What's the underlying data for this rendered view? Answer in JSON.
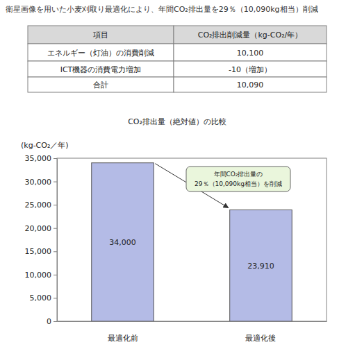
{
  "header": {
    "title": "衛星画像を用いた小麦刈取り最適化により、年間CO₂排出量を29％（10,090kg相当）削減"
  },
  "table": {
    "header": [
      "項目",
      "CO₂排出削減量（kg-CO₂/年）"
    ],
    "rows": [
      [
        "エネルギー（灯油）の消費削減",
        "10,100"
      ],
      [
        "ICT機器の消費電力増加",
        "-10（増加）"
      ],
      [
        "合計",
        "10,090"
      ]
    ]
  },
  "chart_data": {
    "type": "bar",
    "title": "CO₂排出量（絶対値）の比較",
    "y_label": "(kg-CO₂／年)",
    "categories": [
      "最適化前",
      "最適化後"
    ],
    "values": [
      34000,
      23910
    ],
    "value_labels": [
      "34,000",
      "23,910"
    ],
    "data_labels": true,
    "color": "#b4bbe6",
    "ylim": [
      0,
      35000
    ],
    "yticks": [
      0,
      {
        "value": 5000,
        "label": "5,000"
      },
      {
        "value": 10000,
        "label": "10,000"
      },
      {
        "value": 15000,
        "label": "15,000"
      },
      {
        "value": 20000,
        "label": "20,000"
      },
      {
        "value": 25000,
        "label": "25,000"
      },
      {
        "value": 30000,
        "label": "30,000"
      },
      {
        "value": 35000,
        "label": "35,000"
      }
    ],
    "grid": false,
    "annotation": [
      "年間CO₂排出量の",
      "29％（10,090kg相当）を削減"
    ]
  }
}
